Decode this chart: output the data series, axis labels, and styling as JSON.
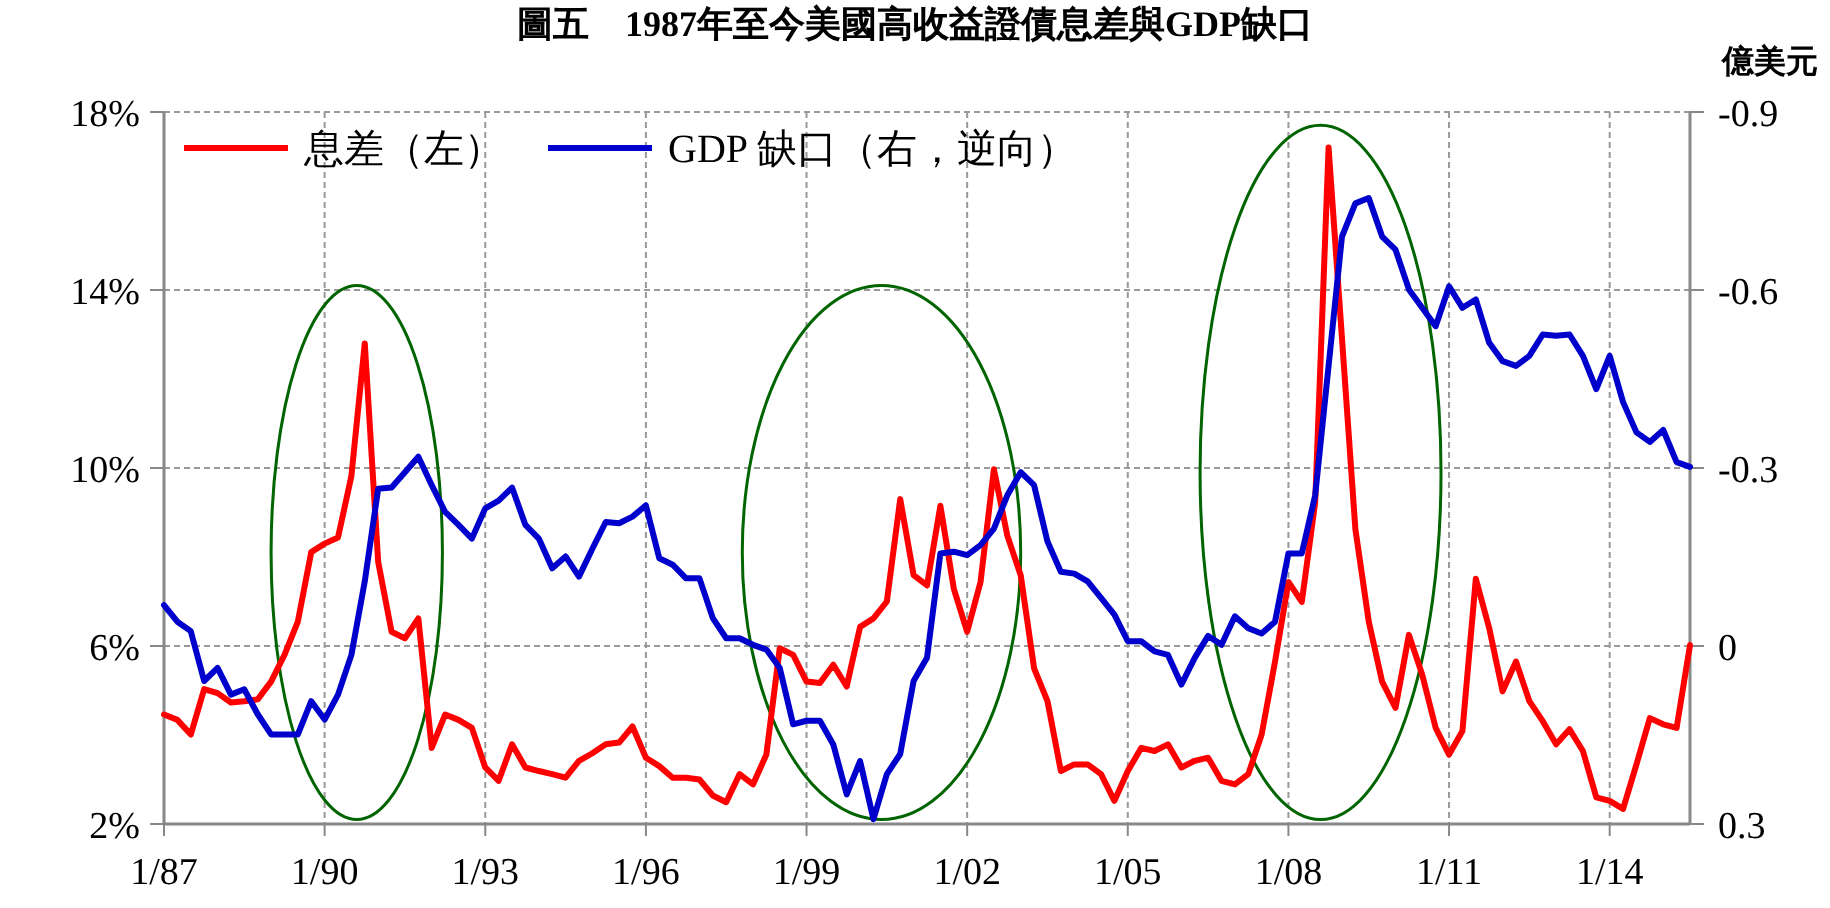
{
  "chart_data": {
    "type": "line",
    "title": "圖五　1987年至今美國高收益證債息差與GDP缺口",
    "y2label": "億美元",
    "xlim": [
      "1987-01",
      "2015-07"
    ],
    "xticks": [
      {
        "value": "1987-01",
        "label": "1/87"
      },
      {
        "value": "1990-01",
        "label": "1/90"
      },
      {
        "value": "1993-01",
        "label": "1/93"
      },
      {
        "value": "1996-01",
        "label": "1/96"
      },
      {
        "value": "1999-01",
        "label": "1/99"
      },
      {
        "value": "2002-01",
        "label": "1/02"
      },
      {
        "value": "2005-01",
        "label": "1/05"
      },
      {
        "value": "2008-01",
        "label": "1/08"
      },
      {
        "value": "2011-01",
        "label": "1/11"
      },
      {
        "value": "2014-01",
        "label": "1/14"
      }
    ],
    "ylim": [
      2,
      18
    ],
    "yticks": [
      {
        "value": 2,
        "label": "2%"
      },
      {
        "value": 6,
        "label": "6%"
      },
      {
        "value": 10,
        "label": "10%"
      },
      {
        "value": 14,
        "label": "14%"
      },
      {
        "value": 18,
        "label": "18%"
      }
    ],
    "y2lim": [
      0.3,
      -0.9
    ],
    "y2ticks": [
      0.3,
      0,
      -0.3,
      -0.6,
      -0.9
    ],
    "grid": true,
    "legend": "top left",
    "line_style": "solid",
    "series": [
      {
        "name": "息差（左）",
        "color": "#ff0000",
        "x": [
          "1987-01",
          "1987-04",
          "1987-07",
          "1987-10",
          "1988-01",
          "1988-04",
          "1988-07",
          "1988-10",
          "1989-01",
          "1989-04",
          "1989-07",
          "1989-10",
          "1990-01",
          "1990-04",
          "1990-07",
          "1990-10",
          "1991-01",
          "1991-04",
          "1991-07",
          "1991-10",
          "1992-01",
          "1992-04",
          "1992-07",
          "1992-10",
          "1993-01",
          "1993-04",
          "1993-07",
          "1993-10",
          "1994-01",
          "1994-04",
          "1994-07",
          "1994-10",
          "1995-01",
          "1995-04",
          "1995-07",
          "1995-10",
          "1996-01",
          "1996-04",
          "1996-07",
          "1996-10",
          "1997-01",
          "1997-04",
          "1997-07",
          "1997-10",
          "1998-01",
          "1998-04",
          "1998-07",
          "1998-10",
          "1999-01",
          "1999-04",
          "1999-07",
          "1999-10",
          "2000-01",
          "2000-04",
          "2000-07",
          "2000-10",
          "2001-01",
          "2001-04",
          "2001-07",
          "2001-10",
          "2002-01",
          "2002-04",
          "2002-07",
          "2002-10",
          "2003-01",
          "2003-04",
          "2003-07",
          "2003-10",
          "2004-01",
          "2004-04",
          "2004-07",
          "2004-10",
          "2005-01",
          "2005-04",
          "2005-07",
          "2005-10",
          "2006-01",
          "2006-04",
          "2006-07",
          "2006-10",
          "2007-01",
          "2007-04",
          "2007-07",
          "2007-10",
          "2008-01",
          "2008-04",
          "2008-07",
          "2008-10",
          "2009-04",
          "2009-07",
          "2009-10",
          "2010-01",
          "2010-04",
          "2010-07",
          "2010-10",
          "2011-01",
          "2011-04",
          "2011-07",
          "2011-10",
          "2012-01",
          "2012-04",
          "2012-07",
          "2012-10",
          "2013-01",
          "2013-04",
          "2013-07",
          "2013-10",
          "2014-01",
          "2014-04",
          "2014-07",
          "2014-10",
          "2015-01",
          "2015-04",
          "2015-07"
        ],
        "values": [
          4.46,
          4.34,
          4.01,
          5.03,
          4.94,
          4.73,
          4.76,
          4.8,
          5.2,
          5.8,
          6.55,
          8.11,
          8.3,
          8.44,
          9.82,
          12.8,
          7.89,
          6.32,
          6.17,
          6.62,
          3.71,
          4.46,
          4.34,
          4.16,
          3.27,
          2.97,
          3.79,
          3.27,
          3.19,
          3.12,
          3.04,
          3.42,
          3.59,
          3.79,
          3.83,
          4.19,
          3.49,
          3.3,
          3.04,
          3.04,
          3.0,
          2.64,
          2.49,
          3.12,
          2.89,
          3.56,
          5.95,
          5.8,
          5.2,
          5.17,
          5.58,
          5.09,
          6.43,
          6.62,
          7.0,
          9.3,
          7.59,
          7.36,
          9.15,
          7.29,
          6.32,
          7.44,
          9.97,
          8.48,
          7.59,
          5.5,
          4.76,
          3.19,
          3.34,
          3.34,
          3.12,
          2.52,
          3.19,
          3.71,
          3.64,
          3.79,
          3.27,
          3.42,
          3.49,
          2.97,
          2.89,
          3.12,
          4.01,
          5.65,
          7.44,
          6.99,
          9.23,
          17.2,
          8.63,
          6.55,
          5.2,
          4.61,
          6.25,
          5.35,
          4.16,
          3.56,
          4.09,
          7.51,
          6.4,
          4.98,
          5.65,
          4.76,
          4.31,
          3.79,
          4.13,
          3.64,
          2.6,
          2.52,
          2.34,
          3.34,
          4.38,
          4.24,
          4.16,
          6.02
        ]
      },
      {
        "name": "GDP 缺口（右，逆向）",
        "color": "#0000cc",
        "axis": "y2",
        "x": [
          "1987-01",
          "1987-04",
          "1987-07",
          "1987-10",
          "1988-01",
          "1988-04",
          "1988-07",
          "1988-10",
          "1989-01",
          "1989-04",
          "1989-07",
          "1989-10",
          "1990-01",
          "1990-04",
          "1990-07",
          "1990-10",
          "1991-01",
          "1991-04",
          "1991-07",
          "1991-10",
          "1992-01",
          "1992-04",
          "1992-07",
          "1992-10",
          "1993-01",
          "1993-04",
          "1993-07",
          "1993-10",
          "1994-01",
          "1994-04",
          "1994-07",
          "1994-10",
          "1995-01",
          "1995-04",
          "1995-07",
          "1995-10",
          "1996-01",
          "1996-04",
          "1996-07",
          "1996-10",
          "1997-01",
          "1997-04",
          "1997-07",
          "1997-10",
          "1998-01",
          "1998-04",
          "1998-07",
          "1998-10",
          "1999-01",
          "1999-04",
          "1999-07",
          "1999-10",
          "2000-01",
          "2000-04",
          "2000-07",
          "2000-10",
          "2001-01",
          "2001-04",
          "2001-07",
          "2001-10",
          "2002-01",
          "2002-04",
          "2002-07",
          "2002-10",
          "2003-01",
          "2003-04",
          "2003-07",
          "2003-10",
          "2004-01",
          "2004-04",
          "2004-07",
          "2004-10",
          "2005-01",
          "2005-04",
          "2005-07",
          "2005-10",
          "2006-01",
          "2006-04",
          "2006-07",
          "2006-10",
          "2007-01",
          "2007-04",
          "2007-07",
          "2007-10",
          "2008-01",
          "2008-04",
          "2008-07",
          "2009-01",
          "2009-04",
          "2009-07",
          "2009-10",
          "2010-01",
          "2010-04",
          "2010-10",
          "2011-01",
          "2011-04",
          "2011-07",
          "2011-10",
          "2012-01",
          "2012-04",
          "2012-07",
          "2012-10",
          "2013-01",
          "2013-04",
          "2013-07",
          "2013-10",
          "2014-01",
          "2014-04",
          "2014-07",
          "2014-10",
          "2015-01",
          "2015-04",
          "2015-07"
        ],
        "values": [
          -0.069,
          -0.041,
          -0.025,
          0.059,
          0.037,
          0.082,
          0.073,
          0.115,
          0.149,
          0.149,
          0.149,
          0.093,
          0.124,
          0.082,
          0.015,
          -0.109,
          -0.265,
          -0.267,
          -0.293,
          -0.319,
          -0.271,
          -0.226,
          -0.204,
          -0.181,
          -0.232,
          -0.245,
          -0.267,
          -0.204,
          -0.181,
          -0.131,
          -0.151,
          -0.117,
          -0.164,
          -0.209,
          -0.207,
          -0.218,
          -0.237,
          -0.148,
          -0.137,
          -0.114,
          -0.114,
          -0.047,
          -0.013,
          -0.013,
          -0.002,
          0.006,
          0.037,
          0.132,
          0.126,
          0.126,
          0.166,
          0.25,
          0.194,
          0.292,
          0.216,
          0.182,
          0.059,
          0.02,
          -0.156,
          -0.159,
          -0.153,
          -0.17,
          -0.198,
          -0.254,
          -0.293,
          -0.271,
          -0.176,
          -0.125,
          -0.122,
          -0.109,
          -0.081,
          -0.053,
          -0.008,
          -0.008,
          0.009,
          0.015,
          0.065,
          0.02,
          -0.017,
          -0.002,
          -0.05,
          -0.03,
          -0.021,
          -0.041,
          -0.156,
          -0.156,
          -0.254,
          -0.69,
          -0.746,
          -0.755,
          -0.69,
          -0.668,
          -0.601,
          -0.539,
          -0.606,
          -0.57,
          -0.584,
          -0.511,
          -0.48,
          -0.472,
          -0.489,
          -0.525,
          -0.523,
          -0.525,
          -0.489,
          -0.433,
          -0.489,
          -0.411,
          -0.36,
          -0.344,
          -0.364,
          -0.31,
          -0.302
        ]
      }
    ]
  }
}
